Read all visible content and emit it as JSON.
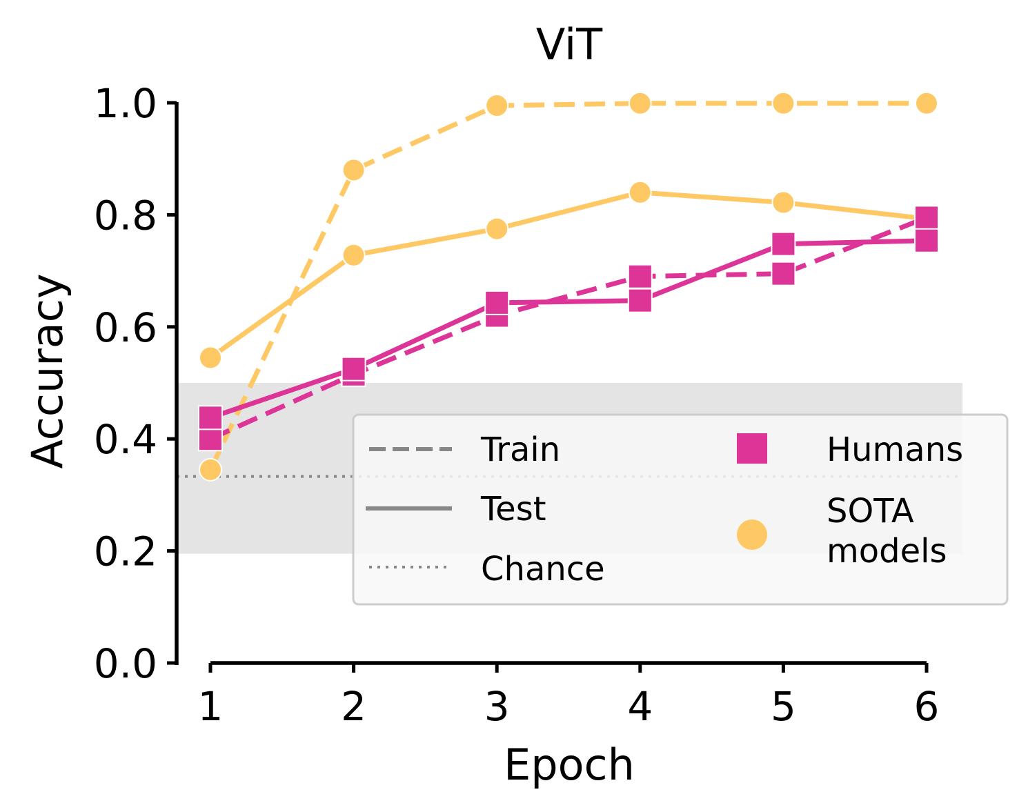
{
  "chart_data": {
    "type": "line",
    "title": "ViT",
    "xlabel": "Epoch",
    "ylabel": "Accuracy",
    "x": [
      1,
      2,
      3,
      4,
      5,
      6
    ],
    "xlim": [
      0.75,
      6.25
    ],
    "ylim": [
      0.0,
      1.0
    ],
    "xticks": [
      "1",
      "2",
      "3",
      "4",
      "5",
      "6"
    ],
    "yticks": [
      "0.0",
      "0.2",
      "0.4",
      "0.6",
      "0.8",
      "1.0"
    ],
    "grid": false,
    "chance_level": 0.333,
    "chance_band": [
      0.195,
      0.5
    ],
    "series": [
      {
        "group": "Humans",
        "split": "Train",
        "values": [
          0.4,
          0.515,
          0.62,
          0.69,
          0.695,
          0.795
        ],
        "color": "#dd3497"
      },
      {
        "group": "Humans",
        "split": "Test",
        "values": [
          0.438,
          0.525,
          0.643,
          0.647,
          0.748,
          0.754
        ],
        "color": "#dd3497"
      },
      {
        "group": "SOTA models",
        "split": "Train",
        "values": [
          0.345,
          0.88,
          0.995,
          0.999,
          0.999,
          0.999
        ],
        "color": "#fec864"
      },
      {
        "group": "SOTA models",
        "split": "Test",
        "values": [
          0.545,
          0.728,
          0.775,
          0.84,
          0.822,
          0.793
        ],
        "color": "#fec864"
      }
    ],
    "legend": {
      "placement": "lower-right",
      "style_entries": [
        "Train",
        "Test",
        "Chance"
      ],
      "group_entries": [
        "Humans",
        "SOTA models"
      ]
    }
  }
}
